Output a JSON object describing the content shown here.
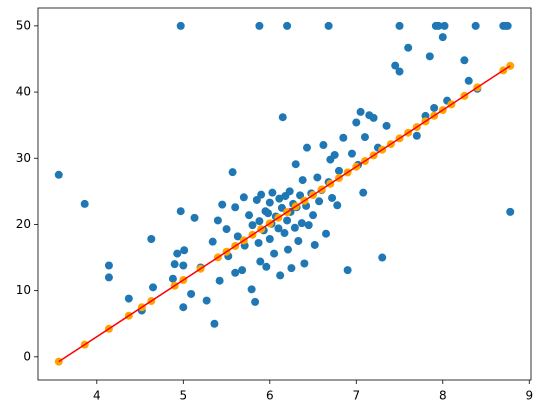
{
  "chart_data": {
    "type": "scatter",
    "xlim": [
      3.32,
      9.02
    ],
    "ylim": [
      -3.5,
      52.7
    ],
    "xticks": [
      4,
      5,
      6,
      7,
      8,
      9
    ],
    "yticks": [
      0,
      10,
      20,
      30,
      40,
      50
    ],
    "grid": false,
    "series": [
      {
        "mode": "markers",
        "color": "#1f77b4",
        "x": [
          3.56,
          3.86,
          4.14,
          4.14,
          4.37,
          4.52,
          4.63,
          4.65,
          4.88,
          4.9,
          4.93,
          4.97,
          4.97,
          5.0,
          5.0,
          5.01,
          5.09,
          5.13,
          5.2,
          5.27,
          5.34,
          5.36,
          5.4,
          5.42,
          5.45,
          5.5,
          5.52,
          5.57,
          5.6,
          5.6,
          5.63,
          5.68,
          5.7,
          5.71,
          5.76,
          5.79,
          5.8,
          5.83,
          5.85,
          5.87,
          5.88,
          5.89,
          5.9,
          5.93,
          5.95,
          5.96,
          5.98,
          6.0,
          6.0,
          6.02,
          6.03,
          6.05,
          6.07,
          6.1,
          6.11,
          6.12,
          6.14,
          6.15,
          6.17,
          6.18,
          6.2,
          6.21,
          6.23,
          6.24,
          6.25,
          6.27,
          6.29,
          6.3,
          6.31,
          6.33,
          6.35,
          6.37,
          6.38,
          6.4,
          6.42,
          6.43,
          6.45,
          6.48,
          6.5,
          6.52,
          6.55,
          6.57,
          6.6,
          6.62,
          6.65,
          6.68,
          6.7,
          6.72,
          6.75,
          6.78,
          6.8,
          6.85,
          6.9,
          6.95,
          7.0,
          7.02,
          7.05,
          7.08,
          7.1,
          7.15,
          7.2,
          7.25,
          7.3,
          7.35,
          7.45,
          7.5,
          7.6,
          7.7,
          7.8,
          7.85,
          7.9,
          8.0,
          8.05,
          8.25,
          8.3,
          8.4,
          8.7,
          8.78,
          5.88,
          6.2,
          6.68,
          7.5,
          7.92,
          7.95,
          8.02,
          8.38,
          8.73,
          8.75
        ],
        "y": [
          27.5,
          23.1,
          13.8,
          12.0,
          8.8,
          7.0,
          17.8,
          10.5,
          11.8,
          14.0,
          15.6,
          22.0,
          50.0,
          13.8,
          7.5,
          16.1,
          9.5,
          21.0,
          13.5,
          8.5,
          17.4,
          5.0,
          20.6,
          11.5,
          23.0,
          19.3,
          15.2,
          27.9,
          12.7,
          22.6,
          18.2,
          13.1,
          24.1,
          16.8,
          21.4,
          10.2,
          19.9,
          8.3,
          23.7,
          17.2,
          20.5,
          14.4,
          24.5,
          19.1,
          22.0,
          13.6,
          21.7,
          23.3,
          17.8,
          20.1,
          24.8,
          15.6,
          21.2,
          19.4,
          23.9,
          12.3,
          22.5,
          36.2,
          18.7,
          24.3,
          20.6,
          16.2,
          25.0,
          21.9,
          13.4,
          23.1,
          19.5,
          29.1,
          22.6,
          17.5,
          24.4,
          20.2,
          26.7,
          14.1,
          22.8,
          31.6,
          19.9,
          24.7,
          21.4,
          16.9,
          27.1,
          23.5,
          25.2,
          32.0,
          18.6,
          26.4,
          29.8,
          24.0,
          30.5,
          22.9,
          28.1,
          33.1,
          13.1,
          30.7,
          35.4,
          29.0,
          37.0,
          24.8,
          33.2,
          36.5,
          36.1,
          31.6,
          15.0,
          34.9,
          44.0,
          43.1,
          46.7,
          33.4,
          36.4,
          45.4,
          37.6,
          48.3,
          38.7,
          44.8,
          41.7,
          40.5,
          50.0,
          21.9,
          50.0,
          50.0,
          50.0,
          50.0,
          50.0,
          50.0,
          50.0,
          50.0,
          50.0,
          50.0
        ]
      },
      {
        "mode": "markers",
        "color": "#ffa500",
        "x": [
          3.56,
          3.86,
          4.14,
          4.37,
          4.52,
          4.63,
          4.9,
          5.0,
          5.2,
          5.4,
          5.5,
          5.6,
          5.7,
          5.8,
          5.9,
          6.0,
          6.1,
          6.2,
          6.3,
          6.4,
          6.5,
          6.6,
          6.7,
          6.8,
          6.9,
          7.0,
          7.1,
          7.2,
          7.3,
          7.4,
          7.5,
          7.6,
          7.7,
          7.8,
          7.9,
          8.0,
          8.1,
          8.25,
          8.4,
          8.7,
          8.78
        ],
        "y": [
          -0.73,
          1.84,
          4.24,
          6.21,
          7.49,
          8.43,
          10.74,
          11.6,
          13.31,
          15.02,
          15.88,
          16.74,
          17.59,
          18.45,
          19.3,
          20.16,
          21.02,
          21.87,
          22.73,
          23.58,
          24.44,
          25.3,
          26.15,
          27.01,
          27.86,
          28.72,
          29.58,
          30.43,
          31.29,
          32.14,
          33.0,
          33.86,
          34.71,
          35.57,
          36.42,
          37.28,
          38.14,
          39.42,
          40.7,
          43.27,
          43.96
        ]
      },
      {
        "mode": "line",
        "color": "#ff0000",
        "x": [
          3.56,
          8.78
        ],
        "y": [
          -0.73,
          43.96
        ]
      }
    ]
  }
}
